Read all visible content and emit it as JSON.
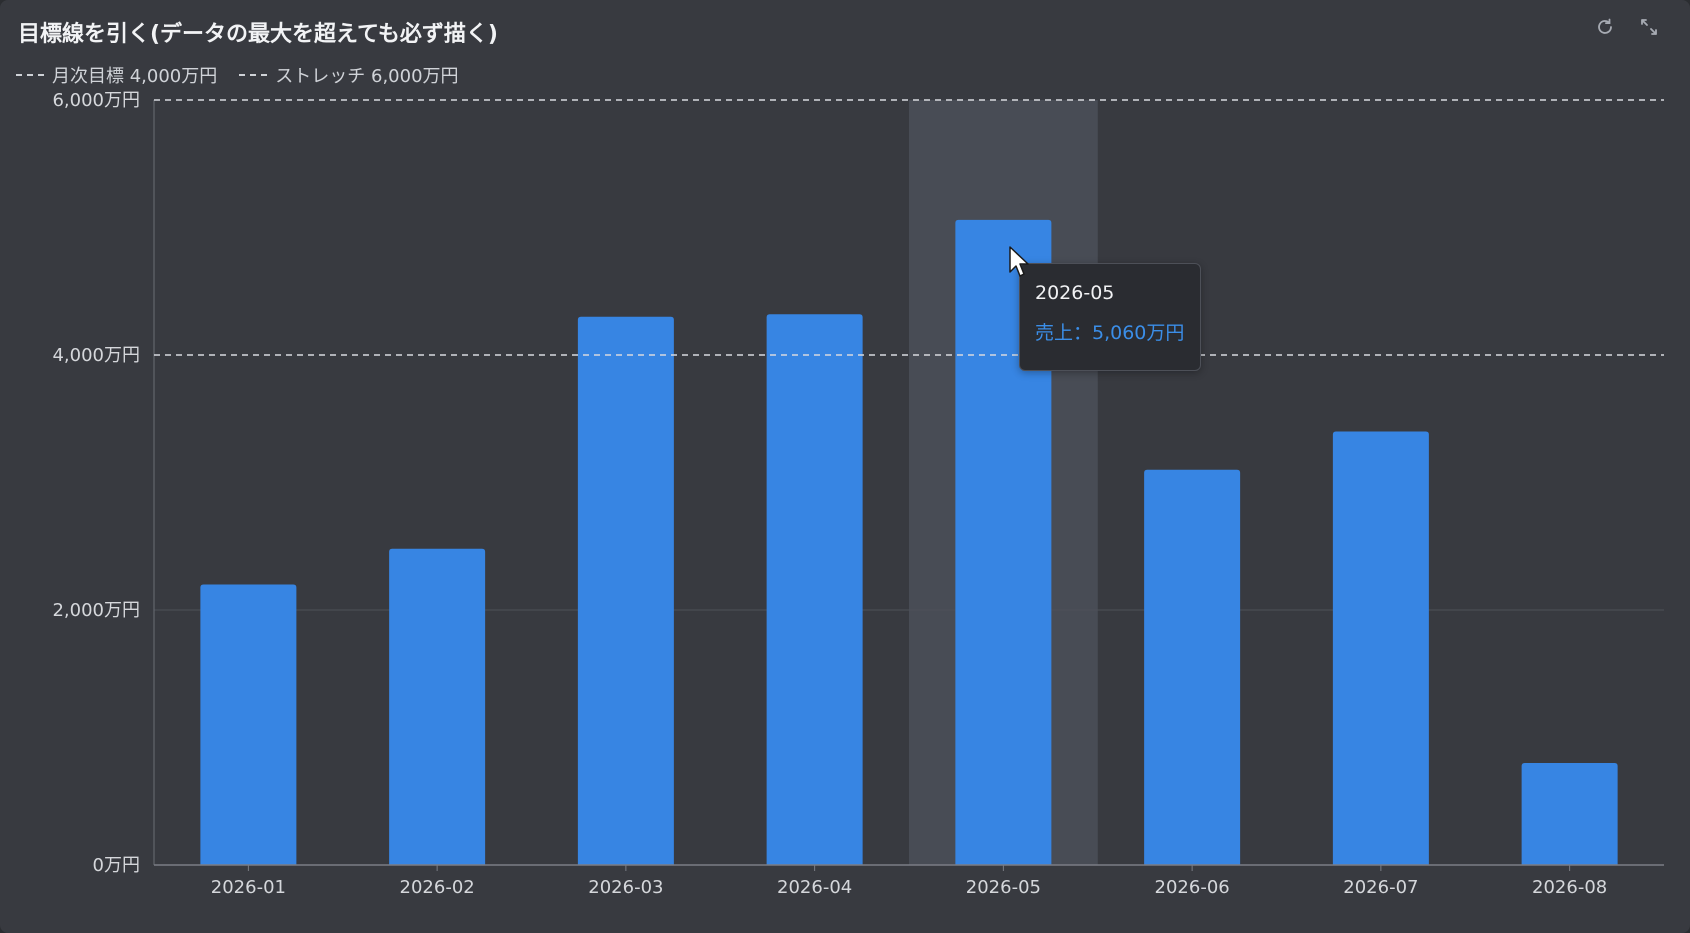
{
  "header": {
    "title": "目標線を引く(データの最大を超えても必ず描く)",
    "refresh_icon": "refresh-icon",
    "expand_icon": "expand-icon"
  },
  "legend": [
    {
      "label": "月次目標 4,000万円"
    },
    {
      "label": "ストレッチ 6,000万円"
    }
  ],
  "tooltip": {
    "title": "2026-05",
    "value": "売上：5,060万円"
  },
  "colors": {
    "bar": "#3785e3",
    "background": "#383a40",
    "highlight": "#484c55",
    "tooltip_value": "#3b8ee8"
  },
  "chart_data": {
    "type": "bar",
    "categories": [
      "2026-01",
      "2026-02",
      "2026-03",
      "2026-04",
      "2026-05",
      "2026-06",
      "2026-07",
      "2026-08"
    ],
    "series": [
      {
        "name": "売上",
        "values": [
          2200,
          2480,
          4300,
          4320,
          5060,
          3100,
          3400,
          800
        ]
      }
    ],
    "y_tick_labels": [
      "0万円",
      "2,000万円",
      "4,000万円",
      "6,000万円"
    ],
    "y_ticks": [
      0,
      2000,
      4000,
      6000
    ],
    "ylim": [
      0,
      6000
    ],
    "reference_lines": [
      {
        "value": 4000,
        "style": "dashed"
      },
      {
        "value": 6000,
        "style": "dashed"
      }
    ],
    "highlighted_category": "2026-05",
    "grid": true,
    "legend_position": "top-left"
  }
}
